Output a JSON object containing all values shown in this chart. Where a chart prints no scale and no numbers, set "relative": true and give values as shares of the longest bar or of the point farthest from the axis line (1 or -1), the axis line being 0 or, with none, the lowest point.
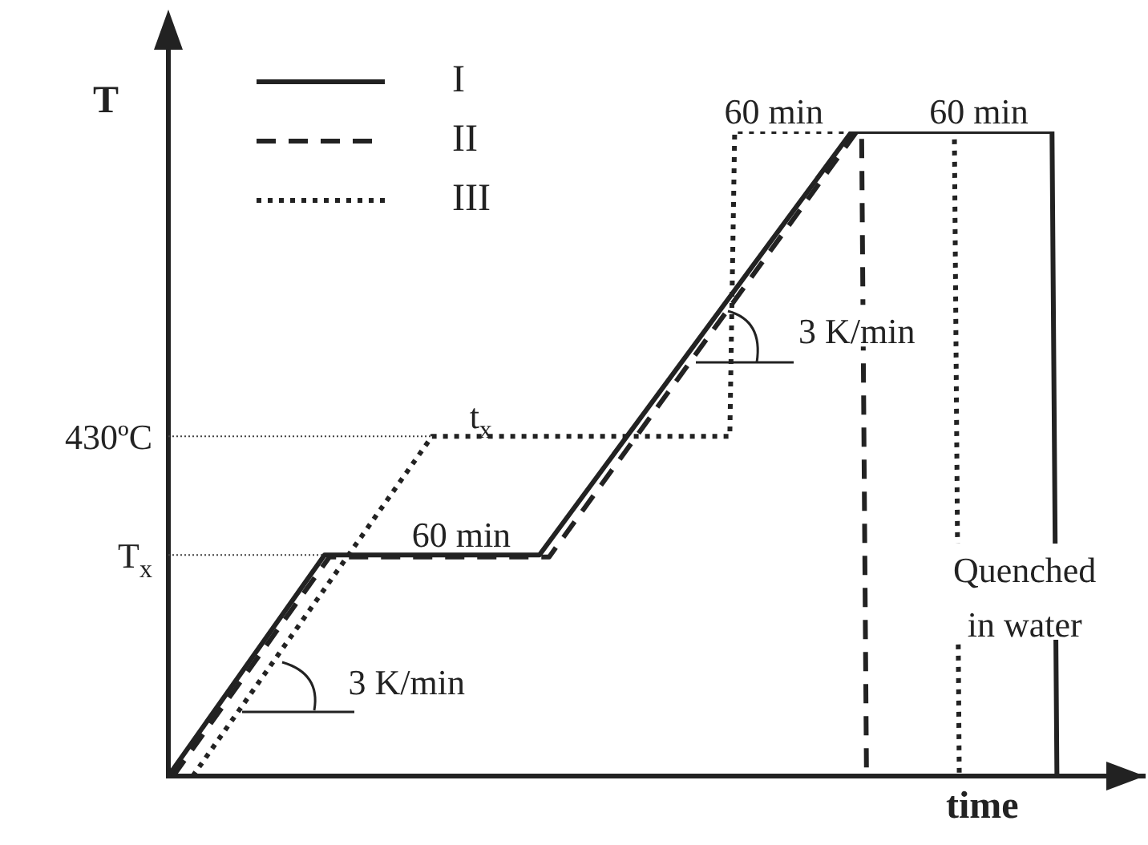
{
  "chart_data": {
    "type": "line",
    "relative": true,
    "ylabel": "T",
    "xlabel": "time",
    "legend": "top left",
    "marker": "none",
    "grid": false,
    "categories": [
      null,
      null,
      null,
      null,
      null,
      null,
      null,
      null,
      null,
      null,
      null,
      null,
      null,
      null,
      null,
      null,
      null,
      null,
      null,
      null,
      null,
      null,
      null,
      null,
      null,
      null,
      null,
      null,
      null,
      null,
      null,
      null,
      null,
      null,
      null,
      null,
      null,
      null,
      null,
      null,
      null,
      null,
      null,
      null,
      null,
      null,
      null,
      null,
      null,
      null,
      null,
      null,
      null,
      null,
      null,
      null,
      null,
      null,
      null,
      null,
      null,
      null,
      null,
      null,
      null,
      null,
      null,
      null,
      null,
      null,
      null,
      null,
      null,
      null,
      null,
      null,
      null,
      null,
      null,
      null,
      null,
      null,
      null,
      null,
      null,
      null,
      null,
      null,
      null,
      null,
      null,
      null,
      null,
      null,
      null,
      null,
      null,
      null,
      null,
      null,
      null,
      null,
      null,
      null,
      null,
      null,
      null,
      null,
      null,
      null,
      null,
      null,
      null,
      null,
      null,
      null,
      null,
      null,
      null,
      null,
      null,
      null,
      null,
      null,
      null,
      null,
      null,
      null,
      null,
      null,
      null,
      null,
      null,
      null,
      null,
      null,
      null,
      null,
      null,
      null,
      null,
      null,
      null,
      null,
      null,
      null,
      null,
      null,
      null,
      null,
      null,
      null,
      null,
      null,
      null,
      null,
      null,
      null,
      null,
      null,
      null,
      null,
      null,
      null,
      null,
      null,
      null,
      null,
      null,
      null,
      null,
      null,
      null,
      null,
      null,
      null,
      null,
      null,
      null,
      null,
      null,
      null,
      null,
      null,
      null,
      null,
      null,
      null,
      null,
      null,
      null,
      null,
      null,
      null,
      null,
      null,
      null,
      null,
      null,
      null,
      null
    ],
    "series": [
      {
        "name": "I",
        "color": "#222222",
        "line_style": "solid",
        "values": [
          0,
          null,
          null,
          null,
          null,
          null,
          null,
          null,
          null,
          null,
          null,
          null,
          null,
          null,
          null,
          null,
          null,
          null,
          null,
          null,
          null,
          null,
          null,
          null,
          null,
          null,
          null,
          null,
          null,
          null,
          null,
          null,
          0.343,
          null,
          null,
          null,
          null,
          null,
          null,
          null,
          null,
          null,
          null,
          null,
          null,
          null,
          null,
          null,
          null,
          null,
          null,
          null,
          null,
          null,
          null,
          null,
          null,
          null,
          null,
          null,
          null,
          null,
          null,
          null,
          null,
          null,
          null,
          null,
          null,
          null,
          null,
          null,
          null,
          null,
          null,
          null,
          0.343,
          null,
          null,
          null,
          null,
          null,
          null,
          null,
          null,
          null,
          null,
          null,
          null,
          null,
          null,
          null,
          null,
          null,
          null,
          null,
          null,
          null,
          null,
          null,
          null,
          null,
          null,
          null,
          null,
          null,
          null,
          null,
          null,
          null,
          null,
          null,
          null,
          null,
          null,
          null,
          null,
          null,
          null,
          null,
          null,
          null,
          null,
          null,
          null,
          null,
          null,
          null,
          null,
          null,
          null,
          null,
          null,
          null,
          null,
          null,
          null,
          null,
          null,
          null,
          1,
          null,
          null,
          null,
          null,
          null,
          null,
          null,
          null,
          null,
          null,
          null,
          null,
          null,
          null,
          null,
          null,
          null,
          null,
          null,
          null,
          null,
          null,
          null,
          null,
          null,
          null,
          null,
          null,
          null,
          null,
          null,
          null,
          null,
          null,
          null,
          null,
          null,
          null,
          null,
          null,
          1,
          0,
          null,
          null,
          null,
          null,
          null,
          null,
          null,
          null,
          null,
          null,
          null,
          null,
          null,
          null,
          null,
          null,
          null,
          null
        ]
      },
      {
        "name": "II",
        "color": "#222222",
        "line_style": "dashed",
        "values": [
          null,
          0,
          null,
          null,
          null,
          null,
          null,
          null,
          null,
          null,
          null,
          null,
          null,
          null,
          null,
          null,
          null,
          null,
          null,
          null,
          null,
          null,
          null,
          null,
          null,
          null,
          null,
          null,
          null,
          null,
          null,
          null,
          null,
          0.34,
          null,
          null,
          null,
          null,
          null,
          null,
          null,
          null,
          null,
          null,
          null,
          null,
          null,
          null,
          null,
          null,
          null,
          null,
          null,
          null,
          null,
          null,
          null,
          null,
          null,
          null,
          null,
          null,
          null,
          null,
          null,
          null,
          null,
          null,
          null,
          null,
          null,
          null,
          null,
          null,
          null,
          null,
          null,
          null,
          0.34,
          null,
          null,
          null,
          null,
          null,
          null,
          null,
          null,
          null,
          null,
          null,
          null,
          null,
          null,
          null,
          null,
          null,
          null,
          null,
          null,
          null,
          null,
          null,
          null,
          null,
          null,
          null,
          null,
          null,
          null,
          null,
          null,
          null,
          null,
          null,
          null,
          null,
          null,
          null,
          null,
          null,
          null,
          null,
          null,
          null,
          null,
          null,
          null,
          null,
          null,
          null,
          null,
          null,
          null,
          null,
          null,
          null,
          null,
          null,
          null,
          null,
          null,
          1,
          1,
          0,
          null,
          null,
          null,
          null,
          null,
          null,
          null,
          null,
          null,
          null,
          null,
          null,
          null,
          null,
          null,
          null,
          null,
          null,
          null,
          null,
          null,
          null,
          null,
          null,
          null,
          null,
          null,
          null,
          null,
          null,
          null,
          null,
          null,
          null,
          null,
          null,
          null,
          null,
          null,
          null,
          null,
          null,
          null,
          null,
          null,
          null,
          null,
          null,
          null,
          null,
          null,
          null,
          null,
          null,
          null,
          null,
          null
        ]
      },
      {
        "name": "III",
        "color": "#222222",
        "line_style": "dotted",
        "values": [
          null,
          null,
          null,
          null,
          null,
          0,
          null,
          null,
          null,
          null,
          null,
          null,
          null,
          null,
          null,
          null,
          null,
          null,
          null,
          null,
          null,
          null,
          null,
          null,
          null,
          null,
          null,
          null,
          null,
          null,
          null,
          null,
          null,
          null,
          null,
          null,
          null,
          null,
          null,
          null,
          null,
          null,
          null,
          null,
          null,
          null,
          null,
          null,
          null,
          null,
          null,
          null,
          null,
          null,
          0.527,
          null,
          null,
          null,
          null,
          null,
          null,
          null,
          null,
          null,
          null,
          null,
          null,
          null,
          null,
          null,
          null,
          null,
          null,
          null,
          null,
          null,
          null,
          null,
          null,
          null,
          null,
          null,
          null,
          null,
          null,
          null,
          null,
          null,
          null,
          null,
          null,
          null,
          null,
          null,
          null,
          null,
          null,
          null,
          null,
          null,
          null,
          null,
          null,
          null,
          null,
          null,
          null,
          null,
          null,
          null,
          null,
          null,
          null,
          null,
          null,
          0.527,
          1,
          null,
          null,
          null,
          null,
          null,
          null,
          null,
          null,
          null,
          null,
          null,
          null,
          null,
          null,
          null,
          null,
          null,
          null,
          null,
          null,
          null,
          null,
          null,
          null,
          null,
          null,
          null,
          null,
          null,
          null,
          null,
          null,
          null,
          null,
          null,
          null,
          null,
          null,
          null,
          null,
          null,
          null,
          null,
          null,
          1,
          0,
          null,
          null,
          null,
          null,
          null,
          null,
          null,
          null,
          null,
          null,
          null,
          null,
          null,
          null,
          null,
          null,
          null,
          null,
          null,
          null,
          null,
          null,
          null,
          null,
          null,
          null,
          null,
          null,
          null,
          null,
          null,
          null,
          null,
          null,
          null,
          null,
          null,
          null
        ]
      }
    ],
    "ref_lines": [
      {
        "axis": "y",
        "value": 0.527,
        "label": "430ºC",
        "line_style": "dotted"
      },
      {
        "axis": "y",
        "value": 0.343,
        "label": "T$_{x}$",
        "line_style": "dotted"
      }
    ],
    "annotations": [
      "60 min",
      "t$_{x}$",
      "60 min",
      "60 min",
      "3 K/min",
      "3 K/min",
      "Quenched\nin water"
    ]
  }
}
